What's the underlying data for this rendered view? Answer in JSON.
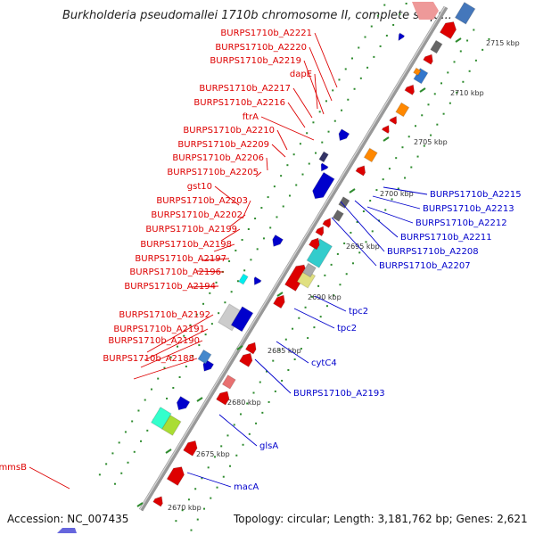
{
  "title": "Burkholderia pseudomallei 1710b chromosome II, complete sequ...",
  "accession": "Accession: NC_007435",
  "topology": "Topology: circular; Length: 3,181,762 bp; Genes: 2,621",
  "colors": {
    "forward": "#dd0000",
    "reverse": "#0000cc",
    "backbone": "#999999",
    "tick": "#2e8b2e"
  },
  "ticks": [
    "2670 kbp",
    "2675 kbp",
    "2680 kbp",
    "2685 kbp",
    "2690 kbp",
    "2695 kbp",
    "2700 kbp",
    "2705 kbp",
    "2710 kbp",
    "2715 kbp"
  ],
  "left_labels": [
    "BURPS1710b_A2221",
    "BURPS1710b_A2220",
    "BURPS1710b_A2219",
    "dapE",
    "BURPS1710b_A2217",
    "BURPS1710b_A2216",
    "ftrA",
    "BURPS1710b_A2210",
    "BURPS1710b_A2209",
    "BURPS1710b_A2206",
    "BURPS1710b_A2205",
    "gst10",
    "BURPS1710b_A2203",
    "BURPS1710b_A2202",
    "BURPS1710b_A2199",
    "BURPS1710b_A2198",
    "BURPS1710b_A2197",
    "BURPS1710b_A2196",
    "BURPS1710b_A2194",
    "BURPS1710b_A2192",
    "BURPS1710b_A2191",
    "BURPS1710b_A2190",
    "BURPS1710b_A2188",
    "mmsB"
  ],
  "right_labels": [
    "BURPS1710b_A2215",
    "BURPS1710b_A2213",
    "BURPS1710b_A2212",
    "BURPS1710b_A2211",
    "BURPS1710b_A2208",
    "BURPS1710b_A2207",
    "tpc2",
    "tpc2",
    "cytC4",
    "BURPS1710b_A2193",
    "glsA",
    "macA"
  ]
}
